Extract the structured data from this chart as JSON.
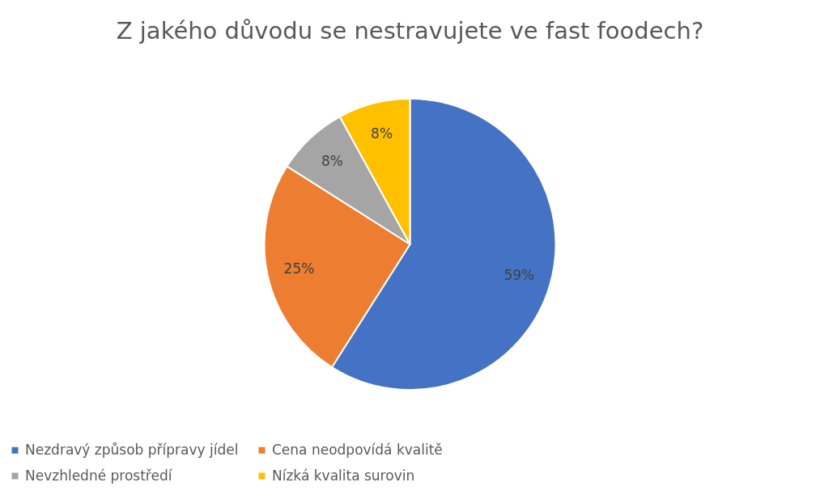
{
  "chart_data": {
    "type": "pie",
    "title": "Z jakého důvodu se nestravujete ve fast foodech?",
    "categories": [
      "Nezdravý způsob přípravy jídel",
      "Cena neodpovídá kvalitě",
      "Nevzhledné prostředí",
      "Nízká kvalita surovin"
    ],
    "values": [
      59,
      25,
      8,
      8
    ],
    "colors": [
      "#4472c4",
      "#ed7d31",
      "#a5a5a5",
      "#ffc000"
    ],
    "value_labels": [
      "59%",
      "25%",
      "8%",
      "8%"
    ],
    "legend": "bottom"
  }
}
